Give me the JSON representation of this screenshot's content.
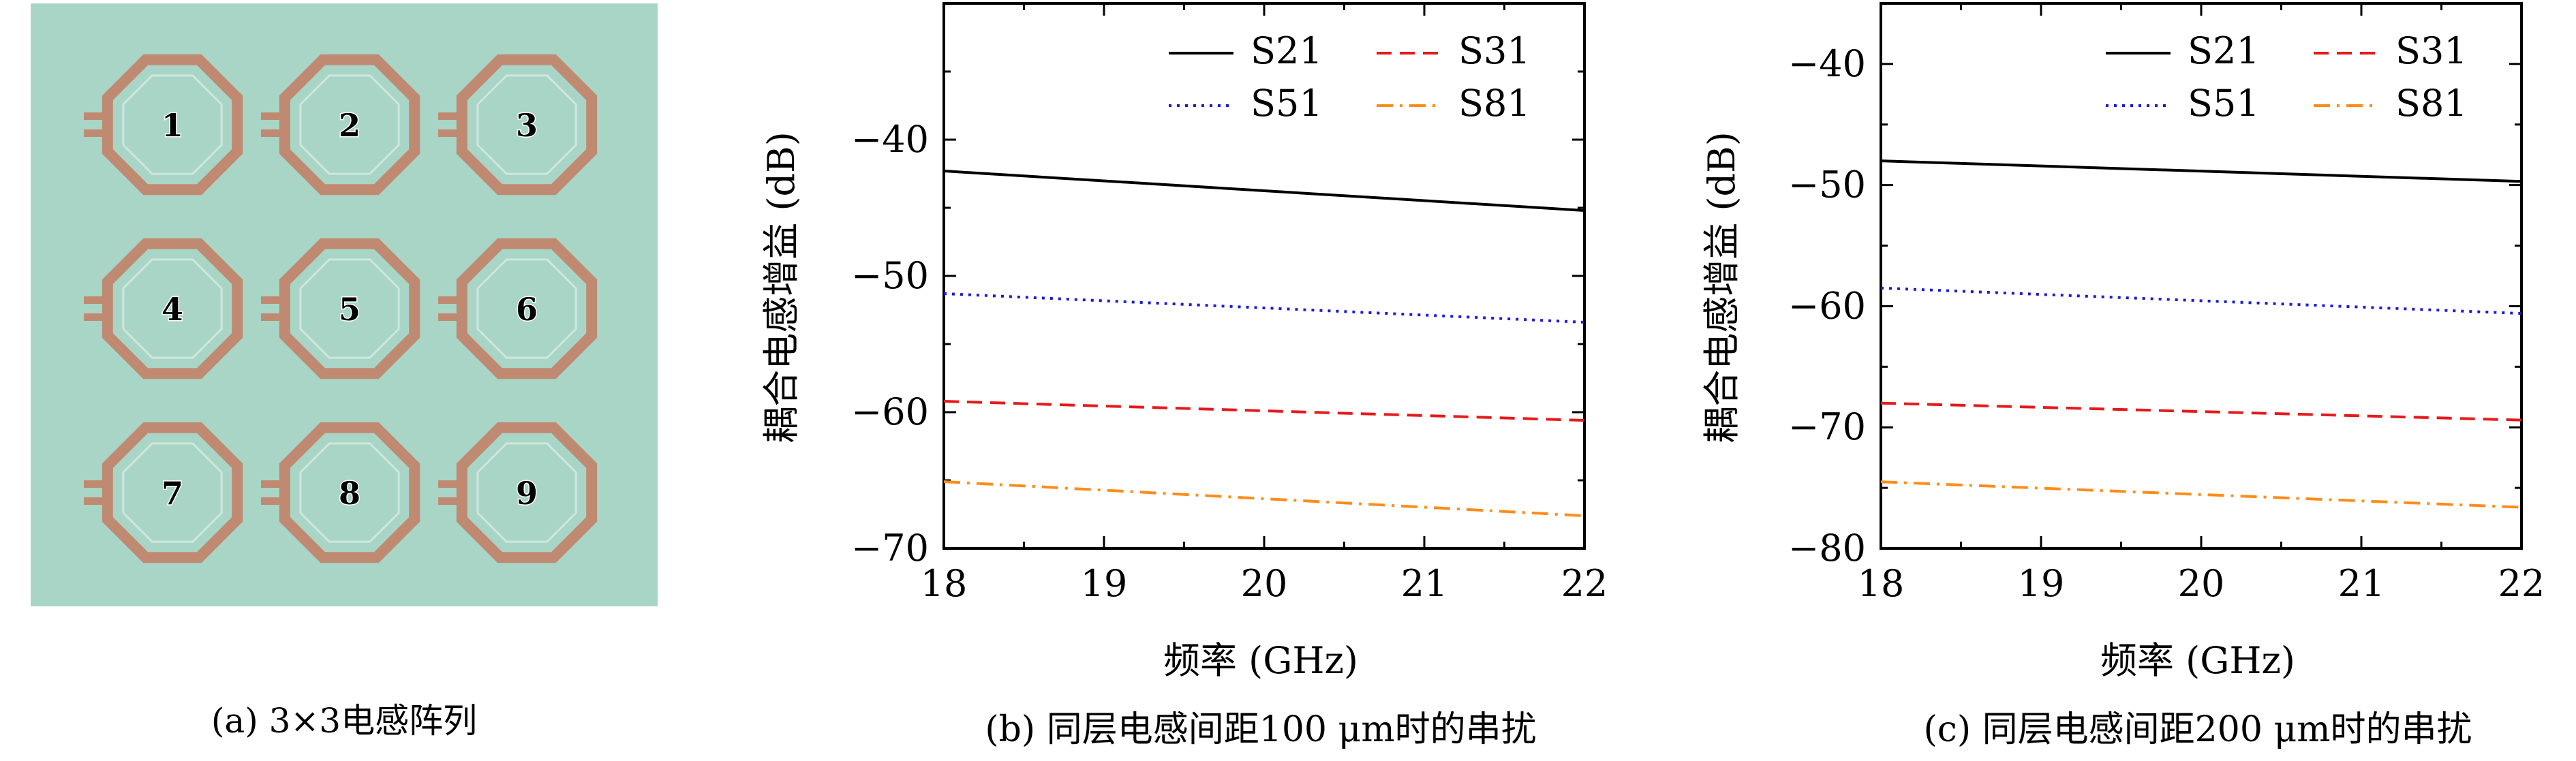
{
  "panel_a": {
    "caption": "(a) 3×3电感阵列",
    "background_color": "#a8d5c6",
    "coil_color": "#c08a72",
    "label_color": "#e83030",
    "inductor_labels": [
      "1",
      "2",
      "3",
      "4",
      "5",
      "6",
      "7",
      "8",
      "9"
    ]
  },
  "chart_data": [
    {
      "type": "line",
      "caption": "(b) 同层电感间距100 μm时的串扰",
      "xlabel": "频率 (GHz)",
      "ylabel": "耦合电感增益 (dB)",
      "xlim": [
        18,
        22
      ],
      "ylim": [
        -70,
        -30
      ],
      "xticks": [
        "18",
        "19",
        "20",
        "21",
        "22"
      ],
      "yticks": [
        -70,
        -60,
        -50,
        -40
      ],
      "ytick_labels": [
        "−70",
        "−60",
        "−50",
        "−40"
      ],
      "legend_position": "top-right",
      "grid": false,
      "series": [
        {
          "name": "S21",
          "x": [
            18,
            22
          ],
          "y": [
            -42.3,
            -45.2
          ],
          "color": "#000000",
          "dash": "solid"
        },
        {
          "name": "S31",
          "x": [
            18,
            22
          ],
          "y": [
            -59.2,
            -60.6
          ],
          "color": "#e41a1c",
          "dash": "dashed"
        },
        {
          "name": "S51",
          "x": [
            18,
            22
          ],
          "y": [
            -51.3,
            -53.4
          ],
          "color": "#1a1adb",
          "dash": "dotted"
        },
        {
          "name": "S81",
          "x": [
            18,
            22
          ],
          "y": [
            -65.1,
            -67.6
          ],
          "color": "#ff8c1a",
          "dash": "dashdot"
        }
      ]
    },
    {
      "type": "line",
      "caption": "(c) 同层电感间距200 μm时的串扰",
      "xlabel": "频率 (GHz)",
      "ylabel": "耦合电感增益 (dB)",
      "xlim": [
        18,
        22
      ],
      "ylim": [
        -80,
        -35
      ],
      "xticks": [
        "18",
        "19",
        "20",
        "21",
        "22"
      ],
      "yticks": [
        -80,
        -70,
        -60,
        -50,
        -40
      ],
      "ytick_labels": [
        "−80",
        "−70",
        "−60",
        "−50",
        "−40"
      ],
      "legend_position": "top-right",
      "grid": false,
      "series": [
        {
          "name": "S21",
          "x": [
            18,
            22
          ],
          "y": [
            -48.0,
            -49.7
          ],
          "color": "#000000",
          "dash": "solid"
        },
        {
          "name": "S31",
          "x": [
            18,
            22
          ],
          "y": [
            -68.0,
            -69.4
          ],
          "color": "#e41a1c",
          "dash": "dashed"
        },
        {
          "name": "S51",
          "x": [
            18,
            22
          ],
          "y": [
            -58.5,
            -60.6
          ],
          "color": "#1a1adb",
          "dash": "dotted"
        },
        {
          "name": "S81",
          "x": [
            18,
            22
          ],
          "y": [
            -74.5,
            -76.6
          ],
          "color": "#ff8c1a",
          "dash": "dashdot"
        }
      ]
    }
  ]
}
